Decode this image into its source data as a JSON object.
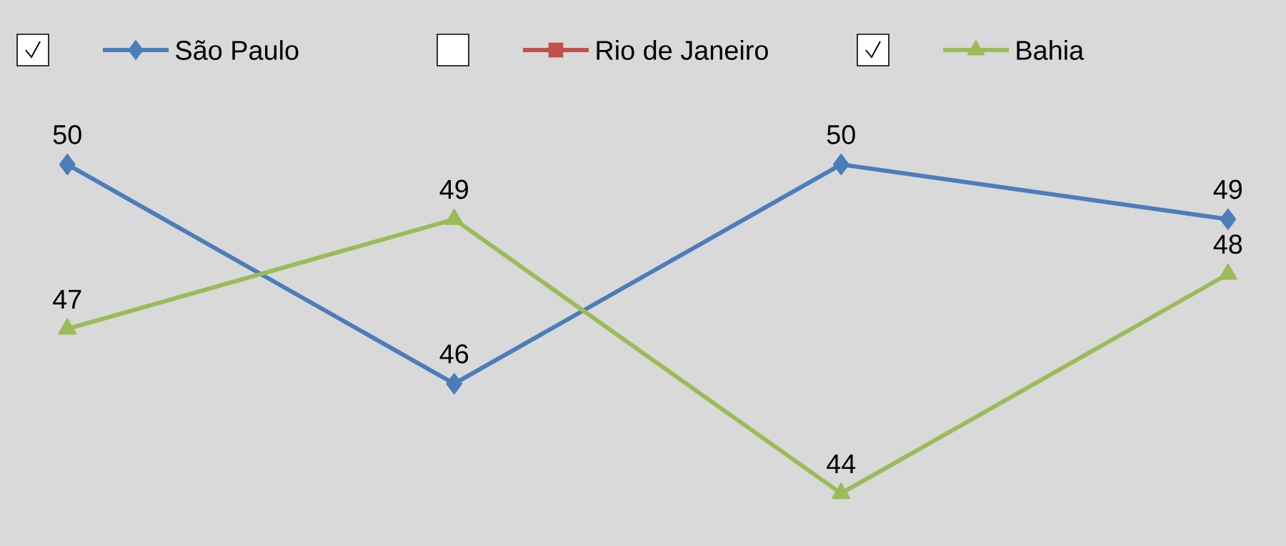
{
  "chart_data": {
    "type": "line",
    "categories": [
      null,
      null,
      null,
      null
    ],
    "series": [
      {
        "name": "São Paulo",
        "color": "#4a7ebb",
        "marker": "diamond",
        "values": [
          50,
          46,
          50,
          49
        ]
      },
      {
        "name": "Rio de Janeiro",
        "color": "#c0504d",
        "marker": "square",
        "values": [
          null,
          null,
          null,
          null
        ]
      },
      {
        "name": "Bahia",
        "color": "#9bbb59",
        "marker": "triangle",
        "values": [
          47,
          49,
          44,
          48
        ]
      }
    ],
    "data_labels": true,
    "legend": "top"
  }
}
